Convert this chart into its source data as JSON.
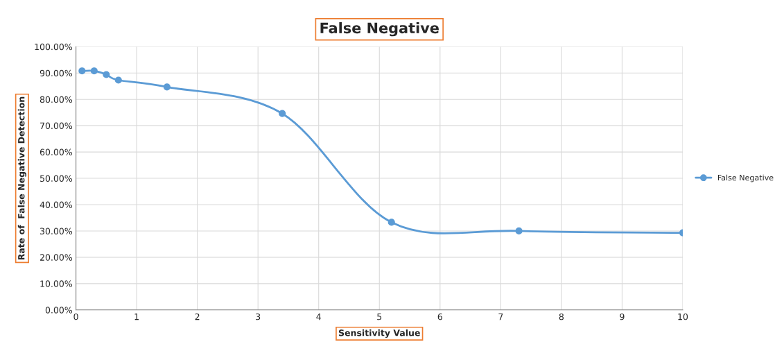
{
  "chart_data": {
    "type": "line",
    "title": "False Negative",
    "xlabel": "Sensitivity Value",
    "ylabel": "Rate of  False Negative Detection",
    "x": [
      0.1,
      0.3,
      0.5,
      0.7,
      1.5,
      3.4,
      5.2,
      7.3,
      10
    ],
    "series": [
      {
        "name": "False Negative",
        "color": "#5b9bd5",
        "values": [
          90.8,
          90.8,
          89.4,
          87.3,
          84.7,
          74.6,
          33.3,
          30.0,
          29.3
        ]
      }
    ],
    "xlim": [
      0,
      10
    ],
    "xticks": [
      0,
      1,
      2,
      3,
      4,
      5,
      6,
      7,
      8,
      9,
      10
    ],
    "ylim": [
      0,
      100
    ],
    "yticks": [
      {
        "value": 0,
        "label": "0.00%"
      },
      {
        "value": 10,
        "label": "10.00%"
      },
      {
        "value": 20,
        "label": "20.00%"
      },
      {
        "value": 30,
        "label": "30.00%"
      },
      {
        "value": 40,
        "label": "40.00%"
      },
      {
        "value": 50,
        "label": "50.00%"
      },
      {
        "value": 60,
        "label": "60.00%"
      },
      {
        "value": 70,
        "label": "70.00%"
      },
      {
        "value": 80,
        "label": "80.00%"
      },
      {
        "value": 90,
        "label": "90.00%"
      },
      {
        "value": 100,
        "label": "100.00%"
      }
    ],
    "grid": true,
    "legend": "right",
    "marker": "circle",
    "line_style": "solid"
  }
}
